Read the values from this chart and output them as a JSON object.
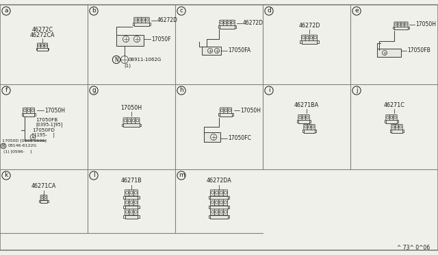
{
  "bg_color": "#f0f0eb",
  "line_color": "#404040",
  "text_color": "#1a1a1a",
  "border_color": "#808080",
  "fig_width": 6.4,
  "fig_height": 3.72,
  "footer": "^ 73^ 0^06",
  "col_edges": [
    0,
    128,
    256,
    384,
    512,
    640
  ],
  "row_edges_img": [
    7,
    123,
    247,
    340,
    365
  ],
  "panels": {
    "a": {
      "col": 0,
      "row": 0,
      "parts": [
        "46272C",
        "46272CA"
      ]
    },
    "b": {
      "col": 1,
      "row": 0,
      "parts": [
        "46272D",
        "17050F",
        "N08911-1062G",
        "(1)"
      ]
    },
    "c": {
      "col": 2,
      "row": 0,
      "parts": [
        "46272D",
        "17050FA"
      ]
    },
    "d": {
      "col": 3,
      "row": 0,
      "parts": [
        "46272D"
      ]
    },
    "e": {
      "col": 4,
      "row": 0,
      "parts": [
        "17050H",
        "17050FB"
      ]
    },
    "f": {
      "col": 0,
      "row": 1,
      "parts": [
        "17050H",
        "17050FB",
        "[0395-1]95]",
        "17050FD",
        "[1195-    ]",
        "17050D [0395-0596]",
        "B08146-6122G",
        "(1) [0596-    ]"
      ]
    },
    "g": {
      "col": 1,
      "row": 1,
      "parts": [
        "17050H"
      ]
    },
    "h": {
      "col": 2,
      "row": 1,
      "parts": [
        "17050H",
        "17050FC"
      ]
    },
    "i": {
      "col": 3,
      "row": 1,
      "parts": [
        "46271BA"
      ]
    },
    "j": {
      "col": 4,
      "row": 1,
      "parts": [
        "46271C"
      ]
    },
    "k": {
      "col": 0,
      "row": 2,
      "parts": [
        "46271CA"
      ]
    },
    "l": {
      "col": 1,
      "row": 2,
      "parts": [
        "46271B"
      ]
    },
    "m": {
      "col": 2,
      "row": 2,
      "parts": [
        "46272DA"
      ]
    }
  }
}
